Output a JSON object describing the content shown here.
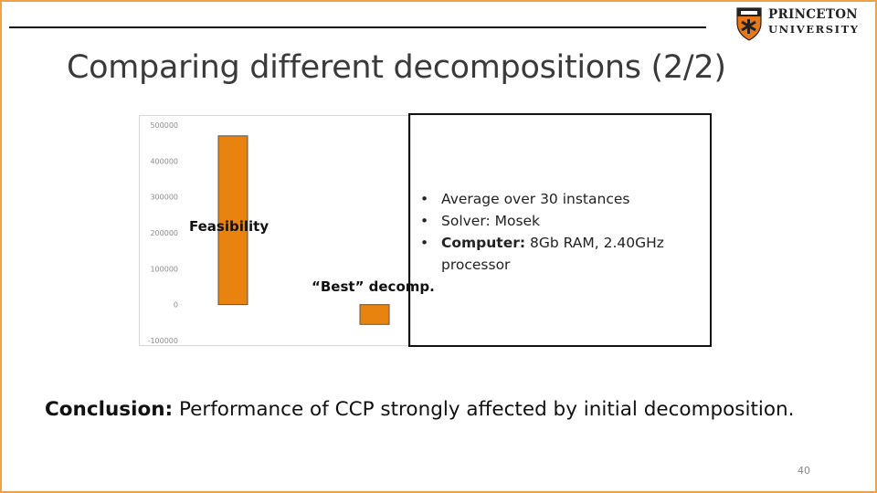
{
  "slide": {
    "title": "Comparing different decompositions (2/2)",
    "page_number": "40",
    "accent_color": "#f0a24a"
  },
  "logo": {
    "line1": "PRINCETON",
    "line2": "UNIVERSITY",
    "shield_color": "#e8761a",
    "icon": "princeton-shield-icon"
  },
  "chart_data": {
    "type": "bar",
    "categories": [
      "Feasibility",
      "“Best” decomp."
    ],
    "values": [
      470000,
      -55000
    ],
    "ylim": [
      -100000,
      500000
    ],
    "yticks": [
      500000,
      400000,
      300000,
      200000,
      100000,
      0,
      -100000
    ],
    "ytick_labels": [
      "500000",
      "400000",
      "300000",
      "200000",
      "100000",
      "0",
      "-100000"
    ],
    "bar_color": "#e8830f",
    "grid": false
  },
  "labels": {
    "feasibility": "Feasibility",
    "best": "“Best” decomp."
  },
  "info": {
    "items": [
      {
        "bold": "",
        "text": "Average over 30 instances"
      },
      {
        "bold": "",
        "text": "Solver: Mosek"
      },
      {
        "bold": "Computer:",
        "text": " 8Gb RAM, 2.40GHz"
      }
    ],
    "continuation": "processor",
    "bullet": "•"
  },
  "conclusion": {
    "label": "Conclusion:",
    "text": " Performance of CCP strongly affected by initial decomposition."
  }
}
